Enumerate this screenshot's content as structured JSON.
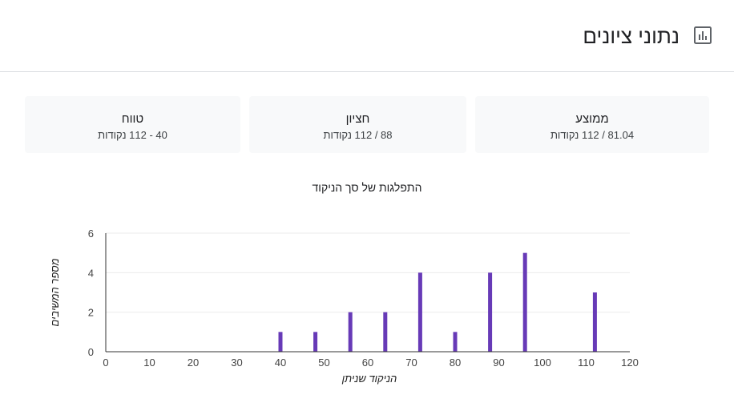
{
  "header": {
    "title": "נתוני ציונים",
    "icon": "bar-chart-icon"
  },
  "stats": [
    {
      "label": "ממוצע",
      "value": "81.04 / 112 נקודות"
    },
    {
      "label": "חציון",
      "value": "88 / 112 נקודות"
    },
    {
      "label": "טווח",
      "value": "40 - 112 נקודות"
    }
  ],
  "colors": {
    "bar": "#673ab7",
    "axis": "#333333",
    "grid": "#ebebeb"
  },
  "chart_data": {
    "type": "bar",
    "title": "התפלגות של סך הניקוד",
    "xlabel": "הניקוד שניתן",
    "ylabel": "מספר המשיבים",
    "x": [
      40,
      48,
      56,
      64,
      72,
      80,
      88,
      96,
      112
    ],
    "values": [
      1,
      1,
      2,
      2,
      4,
      1,
      4,
      5,
      3
    ],
    "xlim": [
      0,
      120
    ],
    "ylim": [
      0,
      6
    ],
    "xticks": [
      0,
      10,
      20,
      30,
      40,
      50,
      60,
      70,
      80,
      90,
      100,
      110,
      120
    ],
    "yticks": [
      0,
      2,
      4,
      6
    ],
    "grid": true,
    "legend": "none"
  }
}
